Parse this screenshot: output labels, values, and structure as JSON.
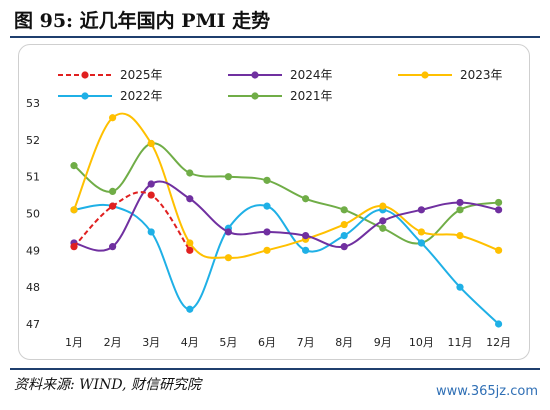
{
  "title": "图 95:  近几年国内 PMI 走势",
  "source": "资料来源: WIND, 财信研究院",
  "watermark": "www.365jz.com",
  "chart_data": {
    "type": "line",
    "title": "",
    "xlabel": "",
    "ylabel": "",
    "categories": [
      "1月",
      "2月",
      "3月",
      "4月",
      "5月",
      "6月",
      "7月",
      "8月",
      "9月",
      "10月",
      "11月",
      "12月"
    ],
    "ylim": [
      47,
      53
    ],
    "yticks": [
      47,
      48,
      49,
      50,
      51,
      52,
      53
    ],
    "grid": false,
    "legend_position": "top",
    "series": [
      {
        "name": "2025年",
        "color": "#e02020",
        "dashed": true,
        "values": [
          49.1,
          50.2,
          50.5,
          49.0,
          null,
          null,
          null,
          null,
          null,
          null,
          null,
          null
        ]
      },
      {
        "name": "2024年",
        "color": "#7030a0",
        "dashed": false,
        "values": [
          49.2,
          49.1,
          50.8,
          50.4,
          49.5,
          49.5,
          49.4,
          49.1,
          49.8,
          50.1,
          50.3,
          50.1
        ]
      },
      {
        "name": "2023年",
        "color": "#ffc000",
        "dashed": false,
        "values": [
          50.1,
          52.6,
          51.9,
          49.2,
          48.8,
          49.0,
          49.3,
          49.7,
          50.2,
          49.5,
          49.4,
          49.0
        ]
      },
      {
        "name": "2022年",
        "color": "#1fb0e6",
        "dashed": false,
        "values": [
          50.1,
          50.2,
          49.5,
          47.4,
          49.6,
          50.2,
          49.0,
          49.4,
          50.1,
          49.2,
          48.0,
          47.0
        ]
      },
      {
        "name": "2021年",
        "color": "#70ad47",
        "dashed": false,
        "values": [
          51.3,
          50.6,
          51.9,
          51.1,
          51.0,
          50.9,
          50.4,
          50.1,
          49.6,
          49.2,
          50.1,
          50.3
        ]
      }
    ]
  }
}
